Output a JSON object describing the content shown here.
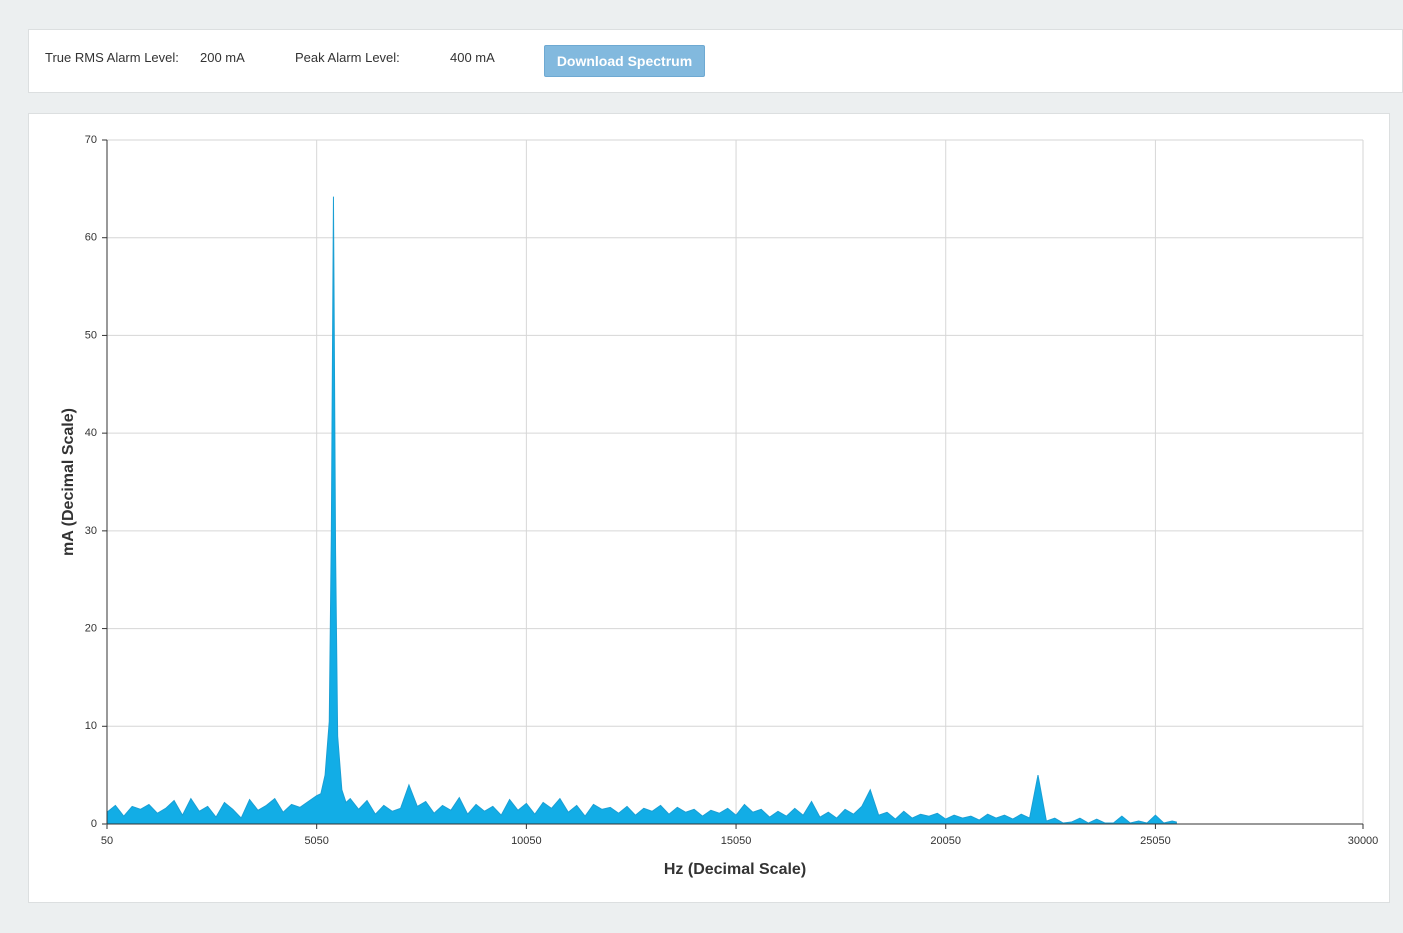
{
  "header": {
    "rms_label": "True RMS Alarm Level:",
    "rms_value": "200 mA",
    "peak_label": "Peak Alarm Level:",
    "peak_value": "400 mA",
    "button": "Download Spectrum"
  },
  "chart_data": {
    "type": "area",
    "color": "#12ade6",
    "grid": true,
    "xlabel": "Hz (Decimal Scale)",
    "ylabel": "mA (Decimal Scale)",
    "xlim": [
      50,
      30000
    ],
    "xticks": [
      50,
      5050,
      10050,
      15050,
      20050,
      25050,
      30000
    ],
    "ylim": [
      0,
      70
    ],
    "yticks": [
      0,
      10,
      20,
      30,
      40,
      50,
      60,
      70
    ],
    "x": [
      50,
      250,
      450,
      650,
      850,
      1050,
      1250,
      1450,
      1650,
      1850,
      2050,
      2250,
      2450,
      2650,
      2850,
      3050,
      3250,
      3450,
      3650,
      3850,
      4050,
      4250,
      4450,
      4650,
      4850,
      5050,
      5150,
      5250,
      5350,
      5400,
      5450,
      5500,
      5550,
      5650,
      5750,
      5850,
      6050,
      6250,
      6450,
      6650,
      6850,
      7050,
      7250,
      7450,
      7650,
      7850,
      8050,
      8250,
      8450,
      8650,
      8850,
      9050,
      9250,
      9450,
      9650,
      9850,
      10050,
      10250,
      10450,
      10650,
      10850,
      11050,
      11250,
      11450,
      11650,
      11850,
      12050,
      12250,
      12450,
      12650,
      12850,
      13050,
      13250,
      13450,
      13650,
      13850,
      14050,
      14250,
      14450,
      14650,
      14850,
      15050,
      15250,
      15450,
      15650,
      15850,
      16050,
      16250,
      16450,
      16650,
      16850,
      17050,
      17250,
      17450,
      17650,
      17850,
      18050,
      18250,
      18450,
      18650,
      18850,
      19050,
      19250,
      19450,
      19650,
      19850,
      20050,
      20250,
      20450,
      20650,
      20850,
      21050,
      21250,
      21450,
      21650,
      21850,
      22050,
      22250,
      22450,
      22650,
      22850,
      23050,
      23250,
      23450,
      23650,
      23850,
      24050,
      24250,
      24450,
      24650,
      24850,
      25050,
      25250,
      25450,
      25550
    ],
    "values": [
      1.2,
      1.9,
      0.8,
      1.8,
      1.5,
      2.0,
      1.1,
      1.6,
      2.4,
      0.9,
      2.6,
      1.3,
      1.8,
      0.7,
      2.2,
      1.5,
      0.6,
      2.5,
      1.4,
      1.9,
      2.6,
      1.2,
      2.0,
      1.7,
      2.3,
      2.9,
      3.1,
      5.0,
      10.5,
      30.0,
      64.2,
      28.0,
      9.0,
      3.5,
      2.2,
      2.6,
      1.5,
      2.4,
      1.0,
      1.9,
      1.3,
      1.6,
      4.0,
      1.8,
      2.3,
      1.1,
      1.9,
      1.4,
      2.7,
      1.0,
      2.0,
      1.3,
      1.8,
      0.9,
      2.5,
      1.4,
      2.1,
      1.0,
      2.2,
      1.6,
      2.6,
      1.2,
      1.9,
      0.8,
      2.0,
      1.5,
      1.7,
      1.1,
      1.8,
      0.9,
      1.6,
      1.3,
      1.9,
      1.0,
      1.7,
      1.2,
      1.5,
      0.8,
      1.4,
      1.1,
      1.6,
      0.9,
      2.0,
      1.2,
      1.5,
      0.7,
      1.3,
      0.8,
      1.6,
      0.9,
      2.3,
      0.7,
      1.2,
      0.6,
      1.5,
      1.0,
      1.8,
      3.5,
      0.9,
      1.2,
      0.5,
      1.3,
      0.6,
      1.0,
      0.8,
      1.1,
      0.5,
      0.9,
      0.6,
      0.8,
      0.4,
      1.0,
      0.6,
      0.9,
      0.5,
      1.0,
      0.6,
      5.0,
      0.3,
      0.6,
      0.1,
      0.2,
      0.6,
      0.1,
      0.5,
      0.1,
      0.1,
      0.8,
      0.1,
      0.3,
      0.1,
      0.9,
      0.1,
      0.3,
      0.2
    ]
  }
}
